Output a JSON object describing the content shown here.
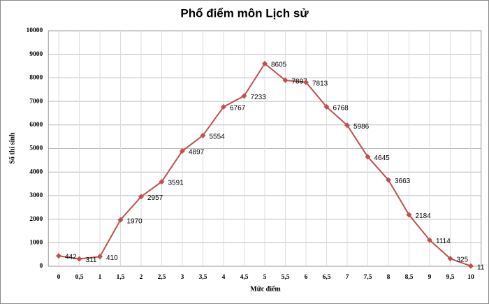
{
  "chart_data": {
    "type": "line",
    "title": "Phổ điểm môn Lịch sử",
    "x_label": "Mức điểm",
    "y_label": "Số thí sinh",
    "categories": [
      "0",
      "0,5",
      "1",
      "1,5",
      "2",
      "2,5",
      "3",
      "3,5",
      "4",
      "4,5",
      "5",
      "5,5",
      "6",
      "6,5",
      "7",
      "7,5",
      "8",
      "8,5",
      "9",
      "9,5",
      "10"
    ],
    "values": [
      442,
      311,
      410,
      1970,
      2957,
      3591,
      4897,
      5554,
      6767,
      7233,
      8605,
      7897,
      7813,
      6768,
      5986,
      4645,
      3663,
      2184,
      1114,
      325,
      11
    ],
    "color": "#c0504d",
    "ylim": [
      0,
      10000
    ],
    "yticks": [
      0,
      1000,
      2000,
      3000,
      4000,
      5000,
      6000,
      7000,
      8000,
      9000,
      10000
    ],
    "grid": true
  }
}
